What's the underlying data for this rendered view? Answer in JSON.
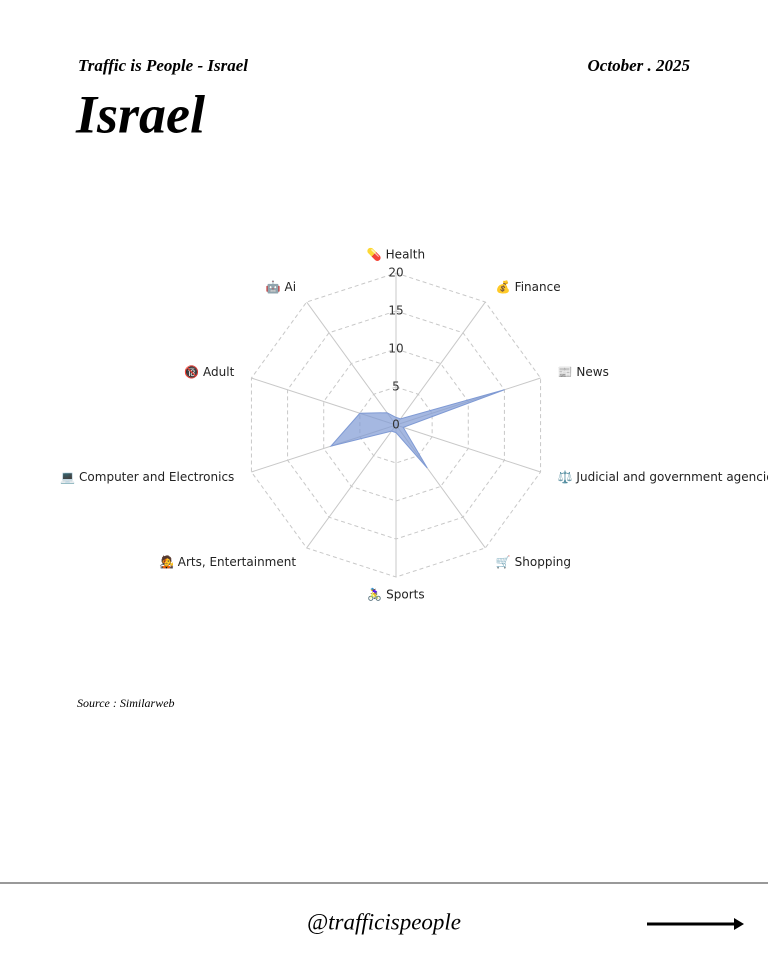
{
  "header": {
    "subtitle": "Traffic is People - Israel",
    "date": "October . 2025",
    "title": "Israel"
  },
  "chart_data": {
    "type": "radar",
    "categories": [
      "💊 Health",
      "💰 Finance",
      "📰 News",
      "⚖️ Judicial and government agencies",
      "🛒 Shopping",
      "🚴‍♀️ Sports",
      "🧑‍🎤 Arts, Entertainment",
      "💻 Computer and Electronics",
      "🔞 Adult",
      "🤖 Ai"
    ],
    "values": [
      1,
      1,
      15,
      1,
      7,
      1,
      1,
      9,
      5,
      2
    ],
    "ylim": [
      0,
      20
    ],
    "yticks": [
      0,
      5,
      10,
      15,
      20
    ],
    "color": "#7f9ad4",
    "grid": true
  },
  "source": "Source : Similarweb",
  "footer": {
    "handle": "@trafficispeople"
  }
}
